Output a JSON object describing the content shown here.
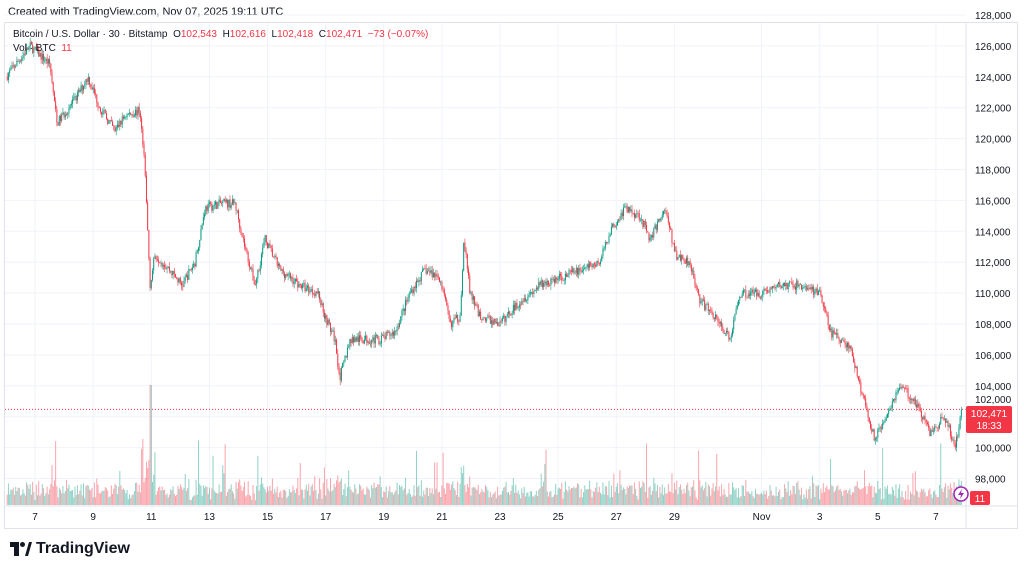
{
  "created": "Created with TradingView.com, Nov 07, 2025 19:11 UTC",
  "legend": {
    "symbol": "Bitcoin / U.S. Dollar · 30 · Bitstamp",
    "o_label": "O",
    "o": "102,543",
    "h_label": "H",
    "h": "102,616",
    "l_label": "L",
    "l": "102,418",
    "c_label": "C",
    "c": "102,471",
    "change": "−73 (−0.07%)",
    "vol_label": "Vol · BTC",
    "vol": "11"
  },
  "price_label": {
    "price": "102,471",
    "countdown": "18:33"
  },
  "volume_label": "11",
  "logo_text": "TradingView",
  "colors": {
    "up": "#089981",
    "down": "#f23645",
    "grid": "#f0f3fa"
  },
  "chart_data": {
    "type": "candlestick",
    "title": "Bitcoin / U.S. Dollar · 30 · Bitstamp",
    "interval": "30m",
    "ylim": [
      96500,
      129000
    ],
    "yticks": [
      98000,
      100000,
      102000,
      104000,
      106000,
      108000,
      110000,
      112000,
      114000,
      116000,
      118000,
      120000,
      122000,
      124000,
      126000,
      128000
    ],
    "ytick_labels": [
      "98,000",
      "100,000",
      "102,000",
      "104,000",
      "106,000",
      "108,000",
      "110,000",
      "112,000",
      "114,000",
      "116,000",
      "118,000",
      "120,000",
      "122,000",
      "124,000",
      "126,000",
      "128,000"
    ],
    "xticks": [
      {
        "day": 1,
        "label": "7"
      },
      {
        "day": 3,
        "label": "9"
      },
      {
        "day": 5,
        "label": "11"
      },
      {
        "day": 7,
        "label": "13"
      },
      {
        "day": 9,
        "label": "15"
      },
      {
        "day": 11,
        "label": "17"
      },
      {
        "day": 13,
        "label": "19"
      },
      {
        "day": 15,
        "label": "21"
      },
      {
        "day": 17,
        "label": "23"
      },
      {
        "day": 19,
        "label": "25"
      },
      {
        "day": 21,
        "label": "27"
      },
      {
        "day": 23,
        "label": "29"
      },
      {
        "day": 26,
        "label": "Nov"
      },
      {
        "day": 28,
        "label": "3"
      },
      {
        "day": 30,
        "label": "5"
      },
      {
        "day": 32,
        "label": "7"
      }
    ],
    "x_unit": "days since Oct 6 2025 00:00 UTC",
    "price_path_approx": [
      [
        0,
        124000
      ],
      [
        0.83,
        126000
      ],
      [
        1.51,
        124800
      ],
      [
        1.75,
        121000
      ],
      [
        2.37,
        122500
      ],
      [
        2.82,
        124000
      ],
      [
        3.23,
        122000
      ],
      [
        3.75,
        120500
      ],
      [
        4.1,
        121500
      ],
      [
        4.61,
        121800
      ],
      [
        4.78,
        118000
      ],
      [
        4.96,
        110500
      ],
      [
        5.13,
        112500
      ],
      [
        5.64,
        111500
      ],
      [
        6.06,
        110500
      ],
      [
        6.5,
        112000
      ],
      [
        6.85,
        115500
      ],
      [
        7.36,
        115800
      ],
      [
        7.88,
        115800
      ],
      [
        8.22,
        113000
      ],
      [
        8.57,
        110500
      ],
      [
        8.91,
        113500
      ],
      [
        9.43,
        111500
      ],
      [
        10.12,
        110500
      ],
      [
        10.74,
        110000
      ],
      [
        10.98,
        108500
      ],
      [
        11.32,
        107000
      ],
      [
        11.49,
        104500
      ],
      [
        11.84,
        107000
      ],
      [
        12.87,
        107000
      ],
      [
        13.39,
        107500
      ],
      [
        13.9,
        110000
      ],
      [
        14.42,
        111500
      ],
      [
        14.93,
        111000
      ],
      [
        15.28,
        108000
      ],
      [
        15.62,
        108500
      ],
      [
        15.76,
        113500
      ],
      [
        15.97,
        110000
      ],
      [
        16.31,
        108500
      ],
      [
        17.0,
        108000
      ],
      [
        17.69,
        109500
      ],
      [
        18.38,
        110500
      ],
      [
        19.06,
        111000
      ],
      [
        19.75,
        111500
      ],
      [
        20.44,
        112000
      ],
      [
        20.78,
        114000
      ],
      [
        21.3,
        115500
      ],
      [
        21.82,
        115000
      ],
      [
        22.16,
        113500
      ],
      [
        22.68,
        115500
      ],
      [
        23.03,
        112500
      ],
      [
        23.54,
        112000
      ],
      [
        23.88,
        109500
      ],
      [
        24.4,
        108500
      ],
      [
        24.91,
        107000
      ],
      [
        25.26,
        110000
      ],
      [
        25.95,
        110000
      ],
      [
        26.63,
        110500
      ],
      [
        27.32,
        110500
      ],
      [
        28.01,
        110000
      ],
      [
        28.36,
        107500
      ],
      [
        29.04,
        106500
      ],
      [
        29.46,
        103500
      ],
      [
        29.9,
        100500
      ],
      [
        30.25,
        102000
      ],
      [
        30.76,
        104000
      ],
      [
        31.28,
        103000
      ],
      [
        31.8,
        101000
      ],
      [
        32.31,
        102000
      ],
      [
        32.66,
        100000
      ],
      [
        32.9,
        102471
      ]
    ],
    "last": {
      "open": 102543,
      "high": 102616,
      "low": 102418,
      "close": 102471,
      "volume": 11
    },
    "volume_peak_day": 4.96
  }
}
